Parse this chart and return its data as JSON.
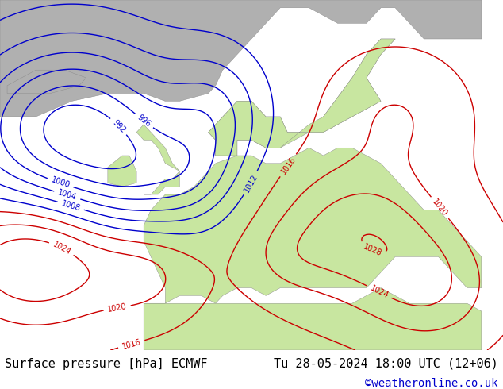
{
  "title_left": "Surface pressure [hPa] ECMWF",
  "title_right": "Tu 28-05-2024 18:00 UTC (12+06)",
  "credit": "©weatheronline.co.uk",
  "bg_color": "#ffffff",
  "footer_bg": "#ffffff",
  "map_sea_color": "#d0e8f8",
  "map_land_color": "#c8e6a0",
  "map_gray_color": "#b0b0b0",
  "contour_colors": {
    "low": "#0000cc",
    "mid": "#000000",
    "high": "#cc0000"
  },
  "font_size_footer": 11,
  "font_size_credit": 10,
  "figsize": [
    6.34,
    4.9
  ],
  "dpi": 100
}
